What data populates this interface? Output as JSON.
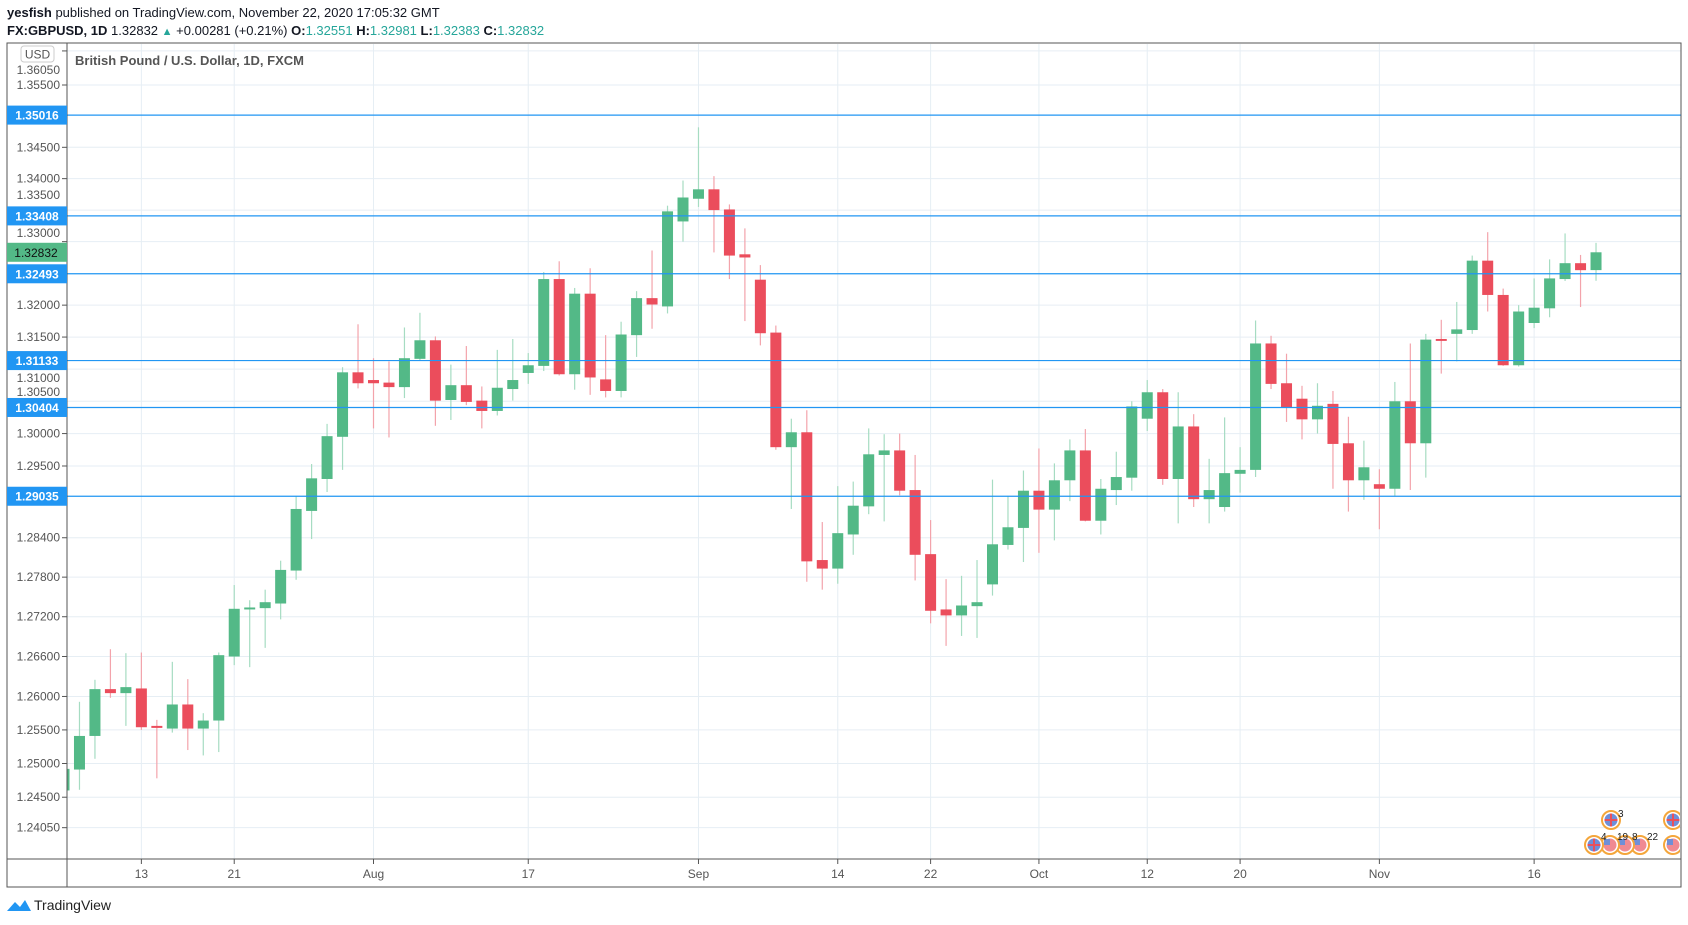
{
  "header": {
    "author": "yesfish",
    "published": "published on TradingView.com, November 22, 2020 17:05:32 GMT",
    "symbol": "FX:GBPUSD, 1D",
    "last": "1.32832",
    "change": "+0.00281 (+0.21%)",
    "o_label": "O:",
    "o": "1.32551",
    "h_label": "H:",
    "h": "1.32981",
    "l_label": "L:",
    "l": "1.32383",
    "c_label": "C:",
    "c": "1.32832"
  },
  "currency_badge": "USD",
  "logo_text": "TradingView",
  "colors": {
    "up": "#53b987",
    "down": "#eb4d5c",
    "line": "#2196f3",
    "grid": "#e6eef4"
  },
  "chart_data": {
    "type": "candlestick",
    "title": "British Pound / U.S. Dollar, 1D, FXCM",
    "scale": "log",
    "ylim": [
      1.236,
      1.362
    ],
    "y_ticks": [
      "1.36050",
      "1.35500",
      "1.34500",
      "1.34000",
      "1.33500",
      "1.33000",
      "1.32000",
      "1.31500",
      "1.31000",
      "1.30500",
      "1.30000",
      "1.29500",
      "1.28400",
      "1.27800",
      "1.27200",
      "1.26600",
      "1.26000",
      "1.25500",
      "1.25000",
      "1.24500",
      "1.24050"
    ],
    "x_ticks": [
      {
        "label": "13",
        "bar": 5
      },
      {
        "label": "21",
        "bar": 11
      },
      {
        "label": "Aug",
        "bar": 20
      },
      {
        "label": "17",
        "bar": 30
      },
      {
        "label": "Sep",
        "bar": 41
      },
      {
        "label": "14",
        "bar": 50
      },
      {
        "label": "22",
        "bar": 56
      },
      {
        "label": "Oct",
        "bar": 63
      },
      {
        "label": "12",
        "bar": 70
      },
      {
        "label": "20",
        "bar": 76
      },
      {
        "label": "Nov",
        "bar": 85
      },
      {
        "label": "16",
        "bar": 95
      }
    ],
    "horizontal_lines": [
      "1.35016",
      "1.33408",
      "1.32493",
      "1.31133",
      "1.30404",
      "1.29035"
    ],
    "current_price": "1.32832",
    "ohlc_columns": [
      "open",
      "high",
      "low",
      "close"
    ],
    "candles": [
      [
        1.246,
        1.2495,
        1.2455,
        1.2492
      ],
      [
        1.2491,
        1.2592,
        1.2461,
        1.2541
      ],
      [
        1.2541,
        1.2625,
        1.2507,
        1.2611
      ],
      [
        1.2611,
        1.2671,
        1.2598,
        1.2605
      ],
      [
        1.2605,
        1.2665,
        1.2556,
        1.2614
      ],
      [
        1.2612,
        1.2666,
        1.255,
        1.2554
      ],
      [
        1.2556,
        1.2565,
        1.2478,
        1.2553
      ],
      [
        1.2552,
        1.2652,
        1.2546,
        1.2588
      ],
      [
        1.2588,
        1.2626,
        1.252,
        1.2552
      ],
      [
        1.2552,
        1.2575,
        1.2512,
        1.2564
      ],
      [
        1.2564,
        1.2666,
        1.2517,
        1.2662
      ],
      [
        1.266,
        1.2768,
        1.2647,
        1.2732
      ],
      [
        1.2731,
        1.2745,
        1.2644,
        1.2734
      ],
      [
        1.2733,
        1.2761,
        1.2673,
        1.2742
      ],
      [
        1.274,
        1.2805,
        1.2716,
        1.2791
      ],
      [
        1.279,
        1.2904,
        1.2776,
        1.2884
      ],
      [
        1.2881,
        1.2953,
        1.2838,
        1.2931
      ],
      [
        1.293,
        1.3015,
        1.291,
        1.2996
      ],
      [
        1.2995,
        1.3103,
        1.2944,
        1.3095
      ],
      [
        1.3095,
        1.317,
        1.307,
        1.3078
      ],
      [
        1.3083,
        1.3117,
        1.3008,
        1.3078
      ],
      [
        1.3079,
        1.3112,
        1.2994,
        1.3072
      ],
      [
        1.3072,
        1.3165,
        1.3055,
        1.3117
      ],
      [
        1.3116,
        1.3188,
        1.3114,
        1.3145
      ],
      [
        1.3145,
        1.3151,
        1.3012,
        1.3051
      ],
      [
        1.3052,
        1.3107,
        1.3021,
        1.3075
      ],
      [
        1.3075,
        1.3136,
        1.3044,
        1.3049
      ],
      [
        1.3051,
        1.3073,
        1.3008,
        1.3035
      ],
      [
        1.3035,
        1.313,
        1.3028,
        1.3071
      ],
      [
        1.3069,
        1.3147,
        1.3051,
        1.3083
      ],
      [
        1.3094,
        1.3125,
        1.3077,
        1.3106
      ],
      [
        1.3105,
        1.3252,
        1.3097,
        1.3241
      ],
      [
        1.3241,
        1.3269,
        1.309,
        1.3092
      ],
      [
        1.3092,
        1.3227,
        1.3068,
        1.3218
      ],
      [
        1.3218,
        1.3258,
        1.306,
        1.3087
      ],
      [
        1.3084,
        1.3153,
        1.3056,
        1.3066
      ],
      [
        1.3066,
        1.3174,
        1.3056,
        1.3154
      ],
      [
        1.3153,
        1.3222,
        1.3119,
        1.3211
      ],
      [
        1.3211,
        1.3286,
        1.3163,
        1.3201
      ],
      [
        1.3198,
        1.3357,
        1.3187,
        1.3348
      ],
      [
        1.3332,
        1.3397,
        1.33,
        1.337
      ],
      [
        1.3368,
        1.3482,
        1.3355,
        1.3383
      ],
      [
        1.3383,
        1.3404,
        1.3283,
        1.335
      ],
      [
        1.3351,
        1.3359,
        1.3241,
        1.3278
      ],
      [
        1.328,
        1.3321,
        1.3175,
        1.3275
      ],
      [
        1.324,
        1.3263,
        1.3137,
        1.3156
      ],
      [
        1.3157,
        1.3168,
        1.2975,
        1.2979
      ],
      [
        1.2979,
        1.3023,
        1.2884,
        1.3002
      ],
      [
        1.3002,
        1.3036,
        1.2773,
        1.2804
      ],
      [
        1.2806,
        1.2864,
        1.2761,
        1.2793
      ],
      [
        1.2793,
        1.2919,
        1.277,
        1.2847
      ],
      [
        1.2845,
        1.2926,
        1.2814,
        1.2889
      ],
      [
        1.2888,
        1.3008,
        1.2876,
        1.2968
      ],
      [
        1.2967,
        1.2999,
        1.2865,
        1.2974
      ],
      [
        1.2974,
        1.3,
        1.2905,
        1.2912
      ],
      [
        1.2913,
        1.2967,
        1.2775,
        1.2814
      ],
      [
        1.2815,
        1.2867,
        1.271,
        1.2729
      ],
      [
        1.2731,
        1.2777,
        1.2676,
        1.2722
      ],
      [
        1.2722,
        1.2782,
        1.2691,
        1.2737
      ],
      [
        1.2736,
        1.2806,
        1.2688,
        1.2742
      ],
      [
        1.2769,
        1.2929,
        1.2752,
        1.283
      ],
      [
        1.2829,
        1.2904,
        1.2822,
        1.2856
      ],
      [
        1.2855,
        1.2943,
        1.2803,
        1.2912
      ],
      [
        1.2912,
        1.2977,
        1.2817,
        1.2883
      ],
      [
        1.2883,
        1.2954,
        1.2836,
        1.2928
      ],
      [
        1.2928,
        1.2991,
        1.2896,
        1.2974
      ],
      [
        1.2974,
        1.3007,
        1.2865,
        1.2866
      ],
      [
        1.2866,
        1.293,
        1.2845,
        1.2915
      ],
      [
        1.2913,
        1.2972,
        1.289,
        1.2933
      ],
      [
        1.2932,
        1.305,
        1.2912,
        1.3042
      ],
      [
        1.3023,
        1.3083,
        1.3004,
        1.3064
      ],
      [
        1.3064,
        1.3069,
        1.2921,
        1.293
      ],
      [
        1.293,
        1.3064,
        1.2862,
        1.3011
      ],
      [
        1.3011,
        1.303,
        1.2887,
        1.2899
      ],
      [
        1.2899,
        1.2961,
        1.2862,
        1.2913
      ],
      [
        1.2887,
        1.3025,
        1.288,
        1.2939
      ],
      [
        1.2938,
        1.2979,
        1.2909,
        1.2944
      ],
      [
        1.2944,
        1.3176,
        1.2933,
        1.314
      ],
      [
        1.314,
        1.3152,
        1.3069,
        1.3077
      ],
      [
        1.3078,
        1.3124,
        1.3018,
        1.304
      ],
      [
        1.3054,
        1.3074,
        1.2991,
        1.3022
      ],
      [
        1.3022,
        1.3078,
        1.3,
        1.3043
      ],
      [
        1.3046,
        1.3066,
        1.2915,
        1.2984
      ],
      [
        1.2985,
        1.3026,
        1.288,
        1.2928
      ],
      [
        1.2928,
        1.2989,
        1.2898,
        1.2948
      ],
      [
        1.2922,
        1.2945,
        1.2853,
        1.2915
      ],
      [
        1.2915,
        1.308,
        1.2904,
        1.305
      ],
      [
        1.305,
        1.314,
        1.2913,
        1.2985
      ],
      [
        1.2985,
        1.3155,
        1.2932,
        1.3146
      ],
      [
        1.3147,
        1.3177,
        1.3093,
        1.3144
      ],
      [
        1.3155,
        1.3205,
        1.3112,
        1.3162
      ],
      [
        1.3161,
        1.3278,
        1.3155,
        1.327
      ],
      [
        1.327,
        1.3315,
        1.319,
        1.3216
      ],
      [
        1.3216,
        1.3226,
        1.3105,
        1.3106
      ],
      [
        1.3106,
        1.32,
        1.3104,
        1.319
      ],
      [
        1.3172,
        1.3242,
        1.3164,
        1.3196
      ],
      [
        1.3195,
        1.3272,
        1.3181,
        1.3242
      ],
      [
        1.3241,
        1.3313,
        1.3238,
        1.3266
      ],
      [
        1.3266,
        1.3279,
        1.3197,
        1.3255
      ],
      [
        1.32551,
        1.32981,
        1.32383,
        1.32832
      ]
    ],
    "events": {
      "upper_row": [
        {
          "country": "uk",
          "count": "3"
        }
      ],
      "lower_row": [
        {
          "country": "uk",
          "count": "4"
        },
        {
          "country": "us",
          "count": "19"
        },
        {
          "country": "us",
          "count": "8"
        },
        {
          "country": "us",
          "count": "22"
        }
      ]
    }
  }
}
